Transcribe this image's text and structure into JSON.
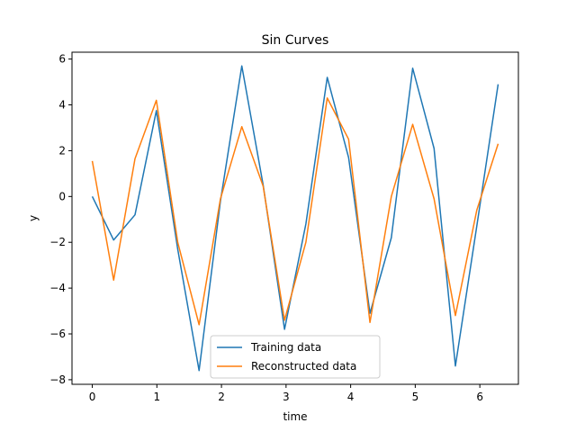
{
  "chart_data": {
    "type": "line",
    "title": "Sin Curves",
    "xlabel": "time",
    "ylabel": "y",
    "xlim": [
      -0.314,
      6.597
    ],
    "ylim": [
      -8.2,
      6.3
    ],
    "xticks": [
      0,
      1,
      2,
      3,
      4,
      5,
      6
    ],
    "yticks": [
      -8,
      -6,
      -4,
      -2,
      0,
      2,
      4,
      6
    ],
    "grid": false,
    "legend_position": "lower center",
    "x": [
      0.0,
      0.3307,
      0.6614,
      0.9921,
      1.3228,
      1.6535,
      1.9842,
      2.3149,
      2.6456,
      2.9762,
      3.3069,
      3.6376,
      3.9683,
      4.299,
      4.6297,
      4.9604,
      5.2911,
      5.6218,
      5.9525,
      6.2832
    ],
    "series": [
      {
        "name": "Training data",
        "color": "#1f77b4",
        "values": [
          0.0,
          -1.9,
          -0.8,
          3.75,
          -2.3,
          -7.6,
          -0.2,
          5.7,
          0.5,
          -5.8,
          -1.2,
          5.2,
          1.7,
          -5.1,
          -1.8,
          5.6,
          2.1,
          -7.4,
          -1.3,
          4.9
        ]
      },
      {
        "name": "Reconstructed data",
        "color": "#ff7f0e",
        "values": [
          1.55,
          -3.65,
          1.65,
          4.2,
          -2.0,
          -5.6,
          -0.1,
          3.05,
          0.45,
          -5.4,
          -2.0,
          4.3,
          2.5,
          -5.5,
          0.0,
          3.15,
          -0.1,
          -5.2,
          -0.6,
          2.3
        ]
      }
    ]
  }
}
